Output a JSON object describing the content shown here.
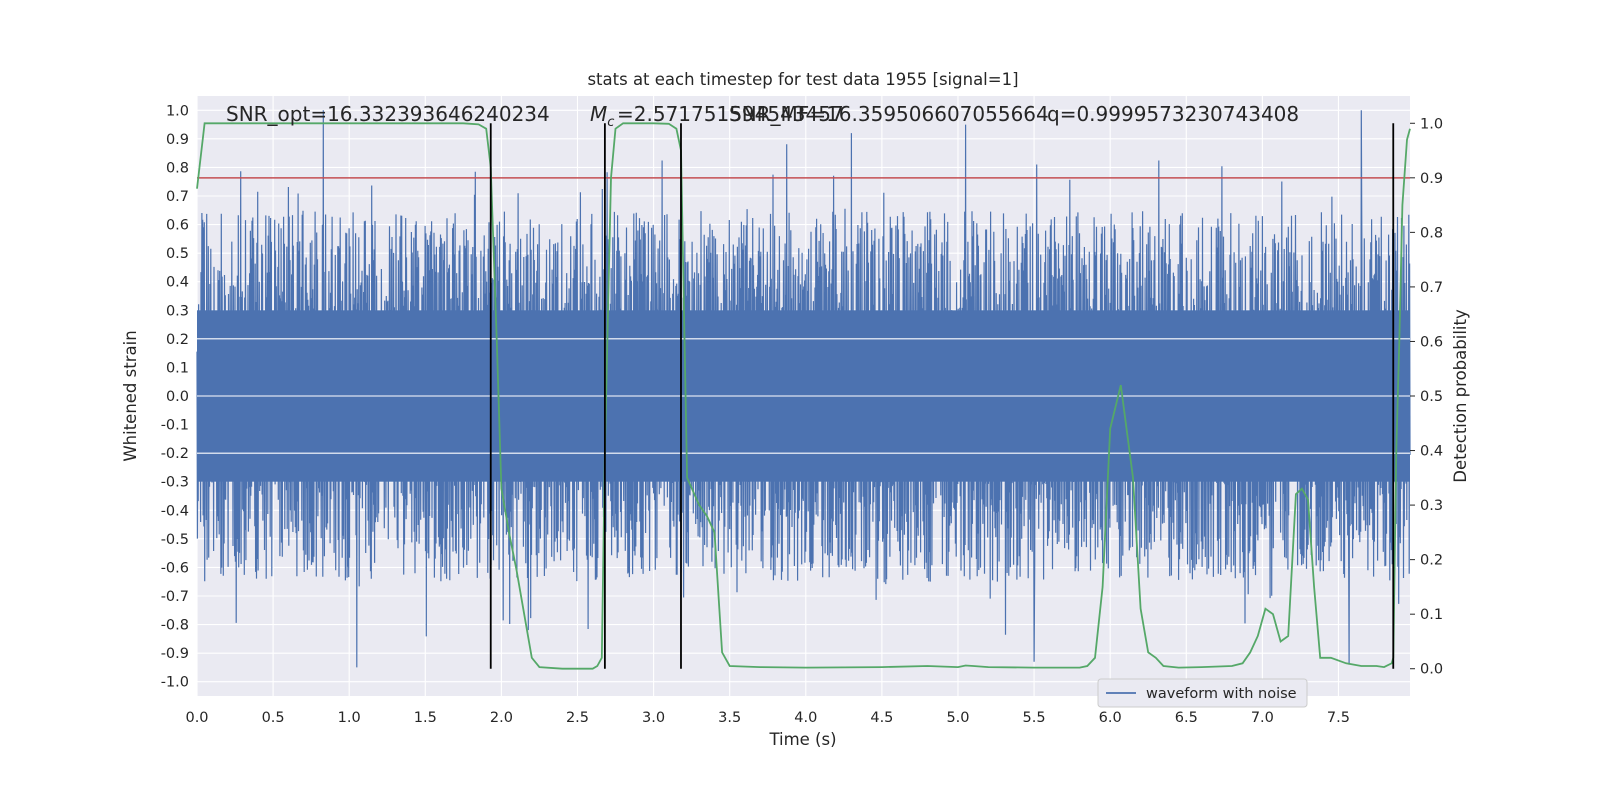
{
  "colors": {
    "axes_bg": "#eaeaf2",
    "grid": "#ffffff",
    "waveform": "#4c72b0",
    "probability": "#55a868",
    "threshold": "#c44e52",
    "markers": "#000000",
    "text": "#262626"
  },
  "chart_data": {
    "type": "line",
    "title": "stats at each timestep for test data 1955 [signal=1]",
    "xlabel": "Time (s)",
    "ylabel": "Whitened strain",
    "y2label": "Detection probability",
    "xlim": [
      0.0,
      7.97
    ],
    "ylim": [
      -1.05,
      1.05
    ],
    "y2lim": [
      -0.05,
      1.05
    ],
    "xticks": [
      "0.0",
      "0.5",
      "1.0",
      "1.5",
      "2.0",
      "2.5",
      "3.0",
      "3.5",
      "4.0",
      "4.5",
      "5.0",
      "5.5",
      "6.0",
      "6.5",
      "7.0",
      "7.5"
    ],
    "yticks": [
      "1.0",
      "0.9",
      "0.8",
      "0.7",
      "0.6",
      "0.5",
      "0.4",
      "0.3",
      "0.2",
      "0.1",
      "0.0",
      "-0.1",
      "-0.2",
      "-0.3",
      "-0.4",
      "-0.5",
      "-0.6",
      "-0.7",
      "-0.8",
      "-0.9",
      "-1.0"
    ],
    "y2ticks": [
      "1.0",
      "0.9",
      "0.8",
      "0.7",
      "0.6",
      "0.5",
      "0.4",
      "0.3",
      "0.2",
      "0.1",
      "0.0"
    ],
    "grid": true,
    "legend": {
      "placement": "lower-right",
      "entries": [
        "waveform with noise"
      ]
    },
    "annotations": {
      "snr_opt": "SNR_opt=16.332393646240234",
      "mc": "=2.571751594543457",
      "snr_mf": "SNR_MF=16.359506607055664",
      "q": "q=0.9999573230743408"
    },
    "threshold": 0.9,
    "vlines": [
      1.93,
      2.68,
      3.18,
      7.86
    ],
    "waveform_envelope": {
      "core_halfwidth": 0.3,
      "typical_peak": [
        0.3,
        0.65
      ],
      "max_abs": 1.0,
      "notable_peaks": [
        {
          "t": 0.83,
          "v": 1.0
        },
        {
          "t": 7.65,
          "v": 1.0
        },
        {
          "t": 4.3,
          "v": 0.92
        },
        {
          "t": 5.05,
          "v": 0.95
        },
        {
          "t": 1.05,
          "v": -0.95
        },
        {
          "t": 5.5,
          "v": -0.93
        },
        {
          "t": 7.57,
          "v": -0.94
        }
      ]
    },
    "series": [
      {
        "name": "waveform with noise",
        "x": [
          0.0,
          7.97
        ],
        "y_range": [
          -1.0,
          1.0
        ]
      },
      {
        "x": [
          0.0,
          0.05,
          0.1,
          0.5,
          1.0,
          1.5,
          1.75,
          1.85,
          1.9,
          1.93,
          1.97,
          2.0,
          2.05,
          2.1,
          2.15,
          2.2,
          2.25,
          2.4,
          2.5,
          2.6,
          2.63,
          2.66,
          2.68,
          2.72,
          2.75,
          2.8,
          3.0,
          3.1,
          3.15,
          3.18,
          3.22,
          3.3,
          3.35,
          3.4,
          3.45,
          3.5,
          3.7,
          4.0,
          4.5,
          4.8,
          5.0,
          5.05,
          5.1,
          5.2,
          5.5,
          5.8,
          5.85,
          5.9,
          5.95,
          6.0,
          6.07,
          6.15,
          6.2,
          6.25,
          6.3,
          6.35,
          6.45,
          6.6,
          6.8,
          6.87,
          6.92,
          6.97,
          7.02,
          7.07,
          7.12,
          7.17,
          7.22,
          7.26,
          7.3,
          7.34,
          7.38,
          7.45,
          7.55,
          7.65,
          7.75,
          7.8,
          7.85,
          7.86,
          7.88,
          7.9,
          7.92,
          7.95,
          7.97
        ],
        "y": [
          0.88,
          1.0,
          1.0,
          1.0,
          1.0,
          1.0,
          1.0,
          0.998,
          0.99,
          0.92,
          0.6,
          0.33,
          0.25,
          0.18,
          0.1,
          0.02,
          0.003,
          0.0,
          0.0,
          0.0,
          0.005,
          0.02,
          0.4,
          0.9,
          0.99,
          1.0,
          1.0,
          0.999,
          0.99,
          0.95,
          0.35,
          0.3,
          0.28,
          0.25,
          0.03,
          0.005,
          0.003,
          0.002,
          0.003,
          0.005,
          0.003,
          0.006,
          0.005,
          0.003,
          0.002,
          0.002,
          0.005,
          0.02,
          0.15,
          0.44,
          0.52,
          0.35,
          0.11,
          0.03,
          0.02,
          0.005,
          0.002,
          0.003,
          0.005,
          0.01,
          0.03,
          0.06,
          0.11,
          0.1,
          0.05,
          0.06,
          0.32,
          0.33,
          0.31,
          0.15,
          0.02,
          0.02,
          0.01,
          0.005,
          0.005,
          0.003,
          0.01,
          0.02,
          0.4,
          0.6,
          0.85,
          0.97,
          0.99
        ]
      }
    ]
  }
}
